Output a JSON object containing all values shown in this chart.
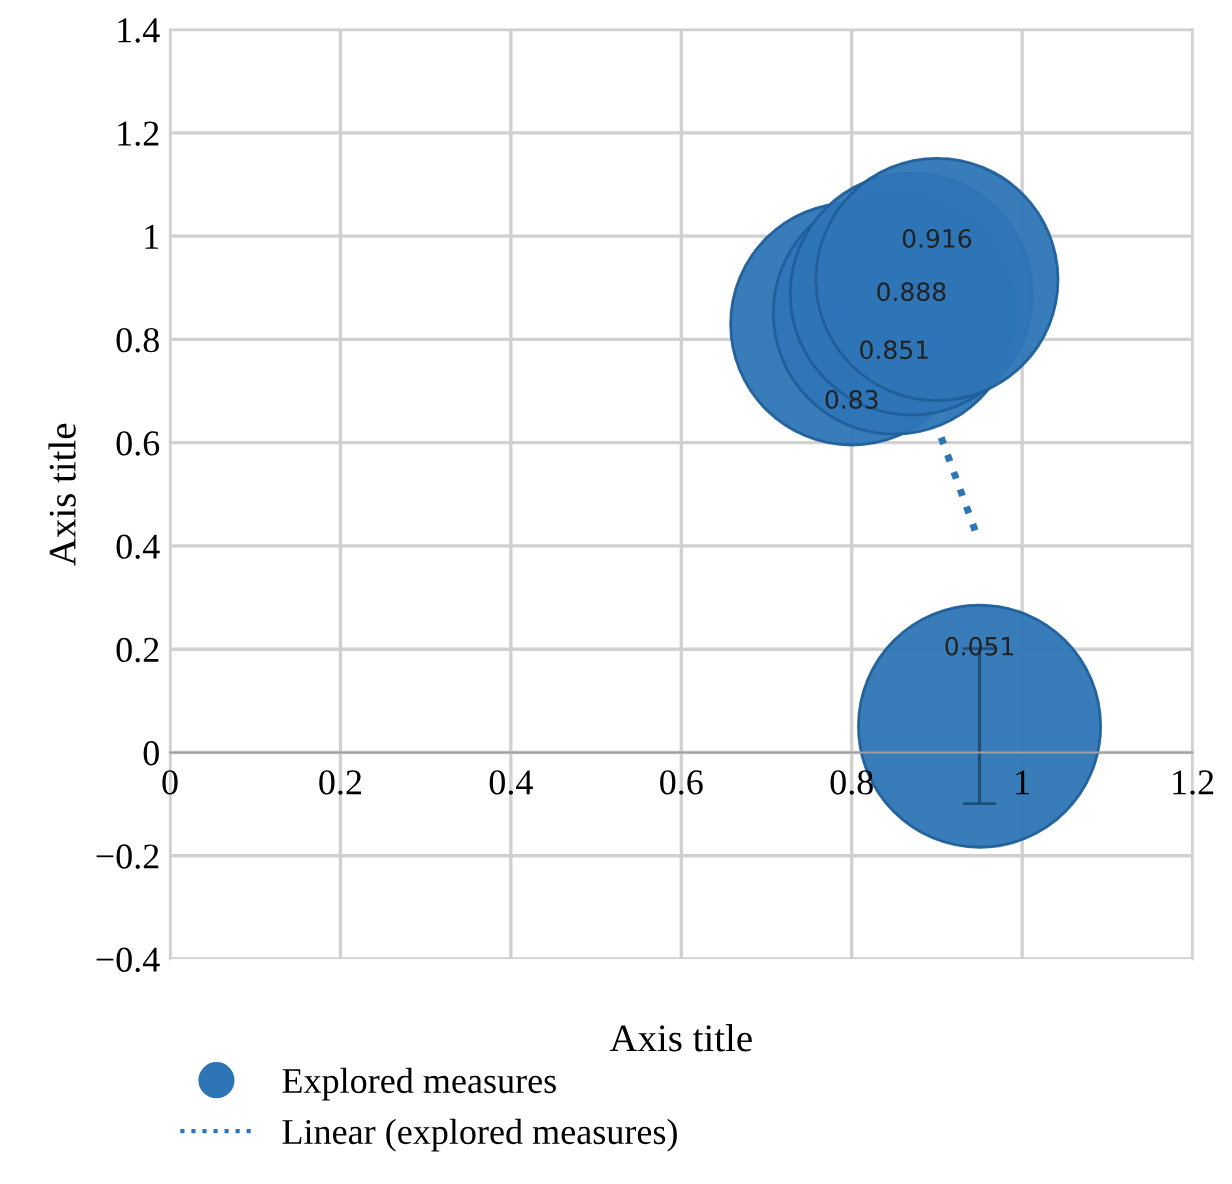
{
  "chart_data": {
    "type": "bubble",
    "xlabel": "Axis title",
    "ylabel": "Axis title",
    "xlim": [
      0,
      1.2
    ],
    "xticks": [
      0,
      0.2,
      0.4,
      0.6,
      0.8,
      1,
      1.2
    ],
    "ylim": [
      -0.4,
      1.4
    ],
    "yticks": [
      {
        "value": -0.4,
        "label": "−0.4"
      },
      {
        "value": -0.2,
        "label": "−0.2"
      },
      0,
      0.2,
      0.4,
      0.6,
      0.8,
      1,
      1.2,
      1.4
    ],
    "grid": true,
    "legend": "bottom",
    "series": [
      {
        "name": "Explored measures",
        "color": "#2e75b6",
        "x": [
          0.8,
          0.85,
          0.87,
          0.9,
          0.95
        ],
        "values": [
          0.83,
          0.851,
          0.888,
          0.916,
          0.051
        ],
        "sizes": [
          1,
          1,
          1,
          1,
          1
        ],
        "errors": [
          null,
          null,
          null,
          null,
          0.15
        ],
        "value_labels": [
          "0.83",
          "0.851",
          "0.888",
          "0.916",
          "0.051"
        ]
      },
      {
        "type": "line",
        "name": "Linear (explored measures)",
        "color": "#2e75b6",
        "line_style": "dotted",
        "x": [
          0.905,
          0.947
        ],
        "values": [
          0.61,
          0.42
        ]
      }
    ]
  }
}
